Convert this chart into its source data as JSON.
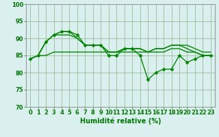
{
  "series": [
    {
      "x": [
        0,
        1,
        2,
        3,
        4,
        5,
        6,
        7,
        8,
        9,
        10,
        11,
        12,
        13,
        14,
        15,
        16,
        17,
        18,
        19,
        20,
        21,
        22,
        23
      ],
      "y": [
        84,
        85,
        89,
        91,
        92,
        92,
        91,
        88,
        88,
        88,
        85,
        85,
        87,
        87,
        85,
        78,
        80,
        81,
        81,
        85,
        83,
        84,
        85,
        85
      ],
      "color": "#008800",
      "linewidth": 1.0,
      "marker": "D",
      "markersize": 2.5
    },
    {
      "x": [
        0,
        1,
        2,
        3,
        4,
        5,
        6,
        7,
        8,
        9,
        10,
        11,
        12,
        13,
        14,
        15,
        16,
        17,
        18,
        19,
        20,
        21,
        22,
        23
      ],
      "y": [
        84,
        85,
        89,
        91,
        92,
        92,
        90,
        88,
        88,
        88,
        86,
        86,
        87,
        87,
        87,
        86,
        87,
        87,
        88,
        88,
        87,
        86,
        85,
        85
      ],
      "color": "#008800",
      "linewidth": 1.0,
      "marker": null,
      "markersize": 0
    },
    {
      "x": [
        0,
        1,
        2,
        3,
        4,
        5,
        6,
        7,
        8,
        9,
        10,
        11,
        12,
        13,
        14,
        15,
        16,
        17,
        18,
        19,
        20,
        21,
        22,
        23
      ],
      "y": [
        84,
        85,
        89,
        91,
        91,
        91,
        90,
        88,
        88,
        88,
        86,
        86,
        87,
        87,
        87,
        86,
        87,
        87,
        88,
        88,
        88,
        87,
        86,
        86
      ],
      "color": "#008800",
      "linewidth": 1.0,
      "marker": null,
      "markersize": 0
    },
    {
      "x": [
        0,
        1,
        2,
        3,
        4,
        5,
        6,
        7,
        8,
        9,
        10,
        11,
        12,
        13,
        14,
        15,
        16,
        17,
        18,
        19,
        20,
        21,
        22,
        23
      ],
      "y": [
        84,
        85,
        85,
        86,
        86,
        86,
        86,
        86,
        86,
        86,
        86,
        86,
        86,
        86,
        86,
        86,
        86,
        86,
        87,
        87,
        86,
        86,
        85,
        85
      ],
      "color": "#008800",
      "linewidth": 1.0,
      "marker": null,
      "markersize": 0
    }
  ],
  "xlabel": "Humidité relative (%)",
  "xlim": [
    -0.5,
    23.5
  ],
  "ylim": [
    70,
    100
  ],
  "yticks": [
    70,
    75,
    80,
    85,
    90,
    95,
    100
  ],
  "xticks": [
    0,
    1,
    2,
    3,
    4,
    5,
    6,
    7,
    8,
    9,
    10,
    11,
    12,
    13,
    14,
    15,
    16,
    17,
    18,
    19,
    20,
    21,
    22,
    23
  ],
  "grid_color": "#99bb99",
  "bg_color": "#daf0ee",
  "xlabel_fontsize": 7,
  "tick_fontsize": 6,
  "tick_color": "#007700",
  "spine_color": "#999999"
}
